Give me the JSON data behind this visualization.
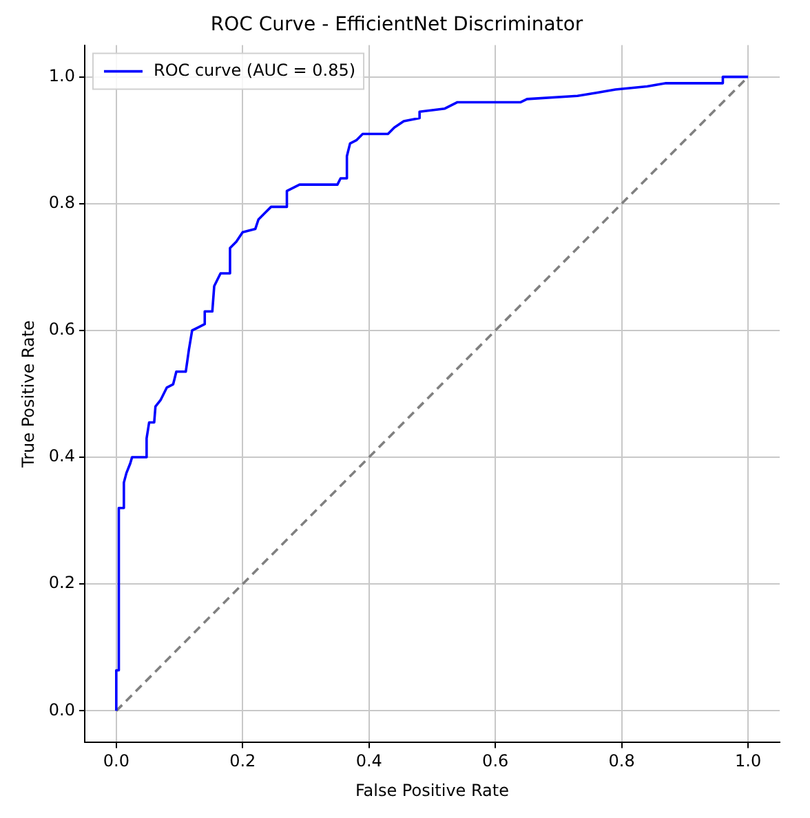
{
  "chart_data": {
    "type": "line",
    "title": "ROC Curve - EfficientNet Discriminator",
    "xlabel": "False Positive Rate",
    "ylabel": "True Positive Rate",
    "xlim": [
      -0.05,
      1.05
    ],
    "ylim": [
      -0.05,
      1.05
    ],
    "xticks": [
      {
        "value": 0,
        "label": "0.0"
      },
      0.2,
      0.4,
      0.6,
      0.8,
      {
        "value": 1,
        "label": "1.0"
      }
    ],
    "yticks": [
      {
        "value": 0,
        "label": "0.0"
      },
      0.2,
      0.4,
      0.6,
      0.8,
      {
        "value": 1,
        "label": "1.0"
      }
    ],
    "grid": true,
    "legend": "top left",
    "marker": "none",
    "series": [
      {
        "name": "ROC curve (AUC = 0.85)",
        "color": "#0000ff",
        "line_style": "solid",
        "x": [
          0,
          0,
          0.004,
          0.004,
          0.012,
          0.012,
          0.016,
          0.022,
          0.025,
          0.048,
          0.048,
          0.052,
          0.06,
          0.062,
          0.07,
          0.08,
          0.09,
          0.095,
          0.11,
          0.115,
          0.12,
          0.13,
          0.14,
          0.14,
          0.152,
          0.155,
          0.165,
          0.18,
          0.18,
          0.19,
          0.2,
          0.22,
          0.225,
          0.235,
          0.245,
          0.27,
          0.27,
          0.29,
          0.35,
          0.355,
          0.365,
          0.365,
          0.37,
          0.38,
          0.39,
          0.43,
          0.44,
          0.455,
          0.48,
          0.48,
          0.52,
          0.54,
          0.64,
          0.65,
          0.73,
          0.76,
          0.79,
          0.84,
          0.87,
          0.96,
          0.96,
          1
        ],
        "values": [
          0,
          0.064,
          0.064,
          0.32,
          0.32,
          0.36,
          0.375,
          0.39,
          0.4,
          0.4,
          0.43,
          0.455,
          0.455,
          0.48,
          0.49,
          0.51,
          0.515,
          0.535,
          0.535,
          0.57,
          0.6,
          0.605,
          0.61,
          0.63,
          0.63,
          0.67,
          0.69,
          0.69,
          0.73,
          0.74,
          0.755,
          0.76,
          0.775,
          0.785,
          0.795,
          0.795,
          0.82,
          0.83,
          0.83,
          0.84,
          0.84,
          0.875,
          0.895,
          0.9,
          0.91,
          0.91,
          0.92,
          0.93,
          0.935,
          0.945,
          0.95,
          0.96,
          0.96,
          0.965,
          0.97,
          0.975,
          0.98,
          0.985,
          0.99,
          0.99,
          1.0,
          1.0
        ]
      },
      {
        "color": "#808080",
        "line_style": "dashed",
        "x": [
          0,
          1
        ],
        "values": [
          0,
          1
        ]
      }
    ]
  }
}
